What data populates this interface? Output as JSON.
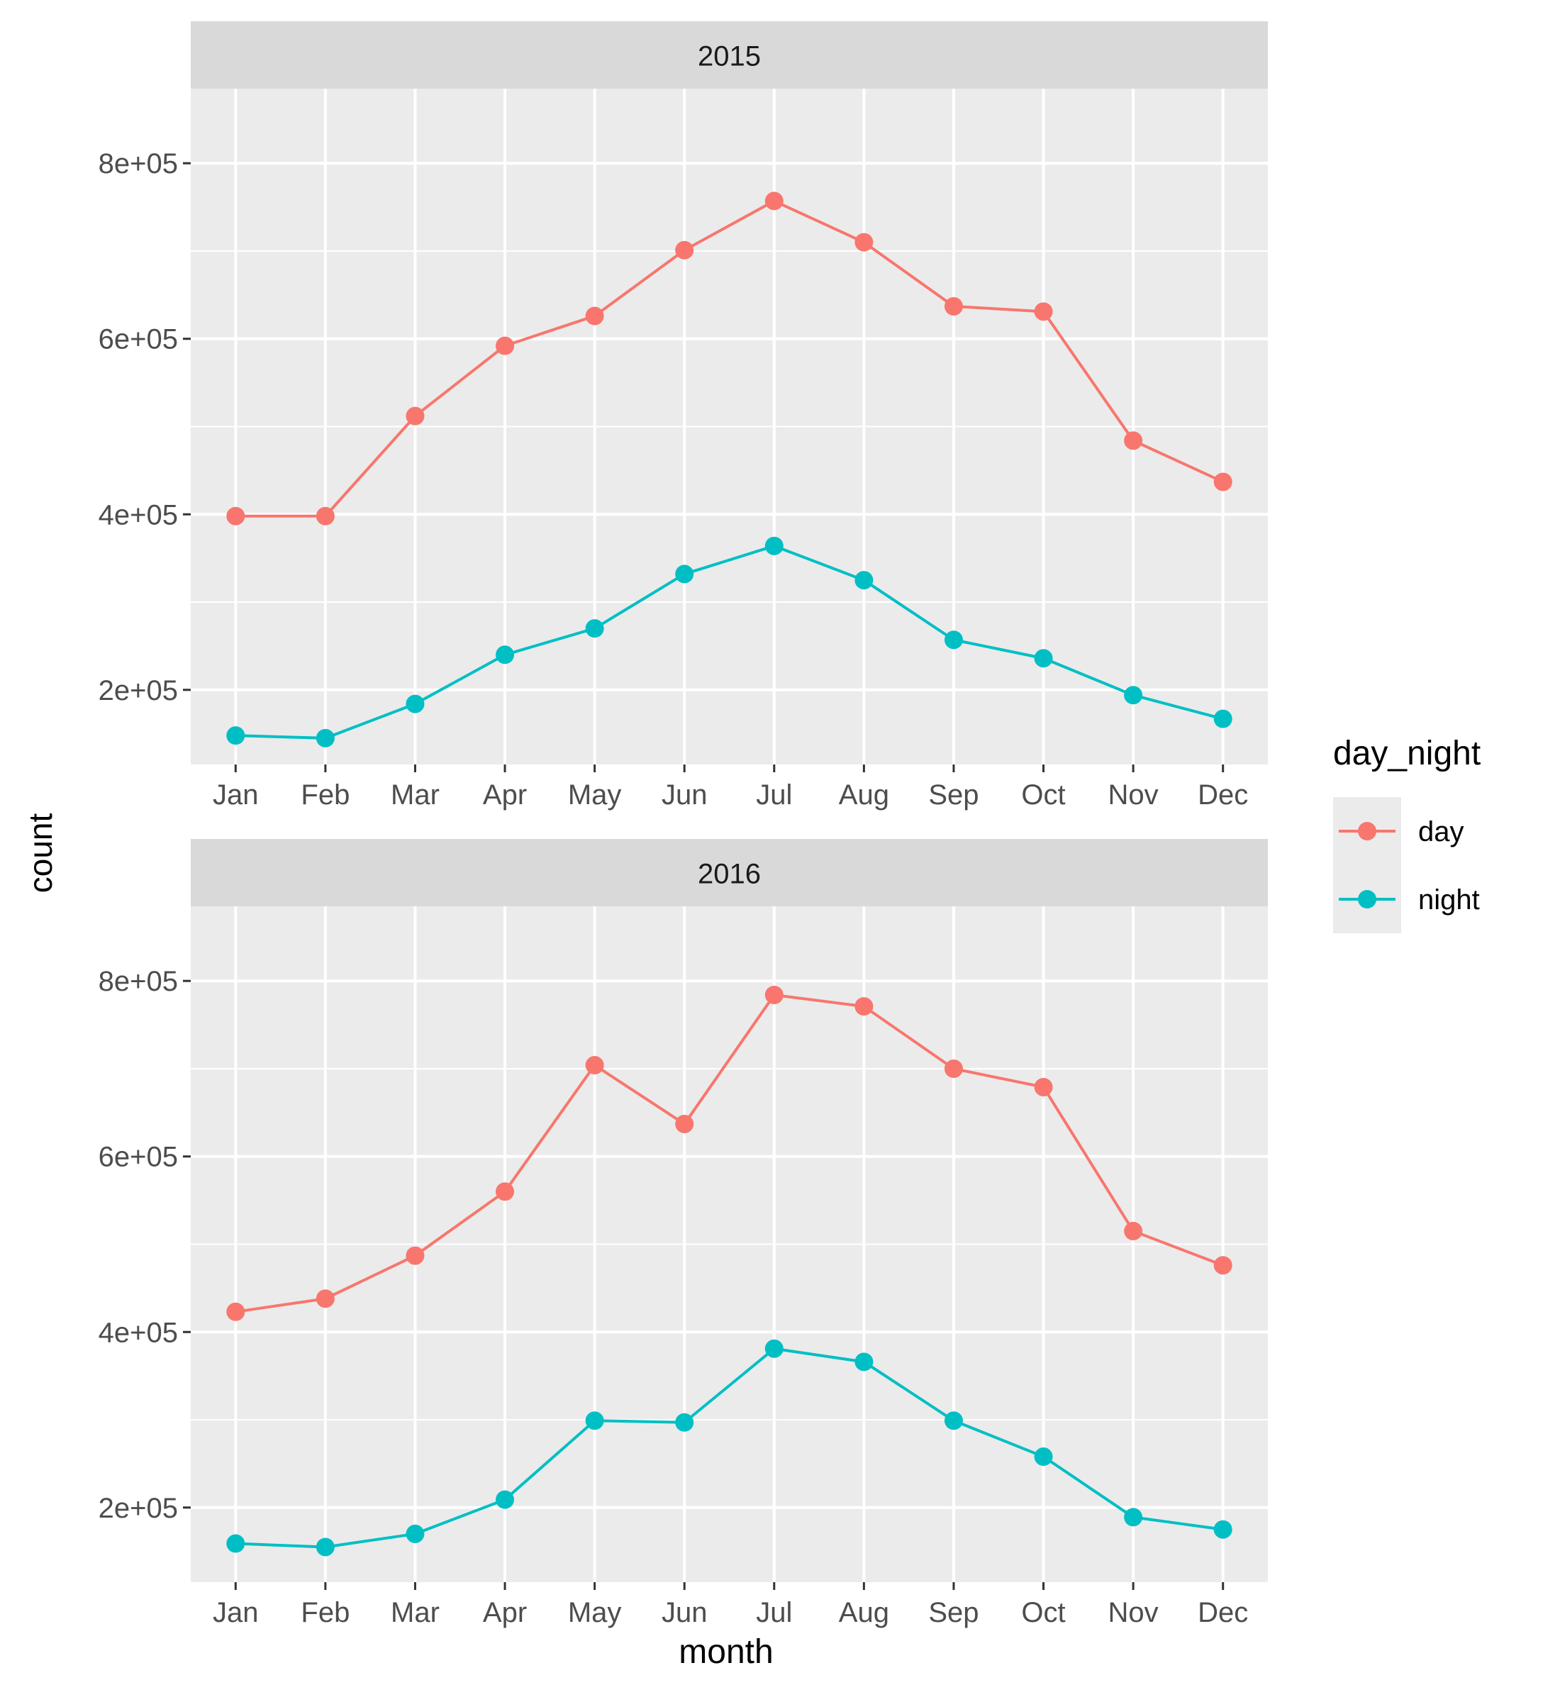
{
  "chart_data": {
    "type": "line",
    "facet_variable": "year",
    "xlabel": "month",
    "ylabel": "count",
    "ylim": [
      115000,
      885000
    ],
    "yticks": [
      200000,
      400000,
      600000,
      800000
    ],
    "ytick_labels": [
      "2e+05",
      "4e+05",
      "6e+05",
      "8e+05"
    ],
    "categories": [
      "Jan",
      "Feb",
      "Mar",
      "Apr",
      "May",
      "Jun",
      "Jul",
      "Aug",
      "Sep",
      "Oct",
      "Nov",
      "Dec"
    ],
    "grid": true,
    "legend": {
      "title": "day_night",
      "placement": "right",
      "entries": [
        {
          "name": "day",
          "color": "#F8766D"
        },
        {
          "name": "night",
          "color": "#00BFC4"
        }
      ]
    },
    "panels": [
      {
        "label": "2015",
        "series": [
          {
            "name": "day",
            "color": "#F8766D",
            "values": [
              398000,
              398000,
              512000,
              592000,
              626000,
              701000,
              757000,
              710000,
              637000,
              631000,
              484000,
              437000
            ]
          },
          {
            "name": "night",
            "color": "#00BFC4",
            "values": [
              148000,
              145000,
              184000,
              240000,
              270000,
              332000,
              364000,
              325000,
              257000,
              236000,
              194000,
              167000
            ]
          }
        ]
      },
      {
        "label": "2016",
        "series": [
          {
            "name": "day",
            "color": "#F8766D",
            "values": [
              423000,
              438000,
              487000,
              560000,
              704000,
              637000,
              784000,
              771000,
              700000,
              679000,
              515000,
              476000
            ]
          },
          {
            "name": "night",
            "color": "#00BFC4",
            "values": [
              159000,
              155000,
              170000,
              209000,
              299000,
              297000,
              381000,
              366000,
              299000,
              258000,
              189000,
              175000
            ]
          }
        ]
      }
    ]
  }
}
